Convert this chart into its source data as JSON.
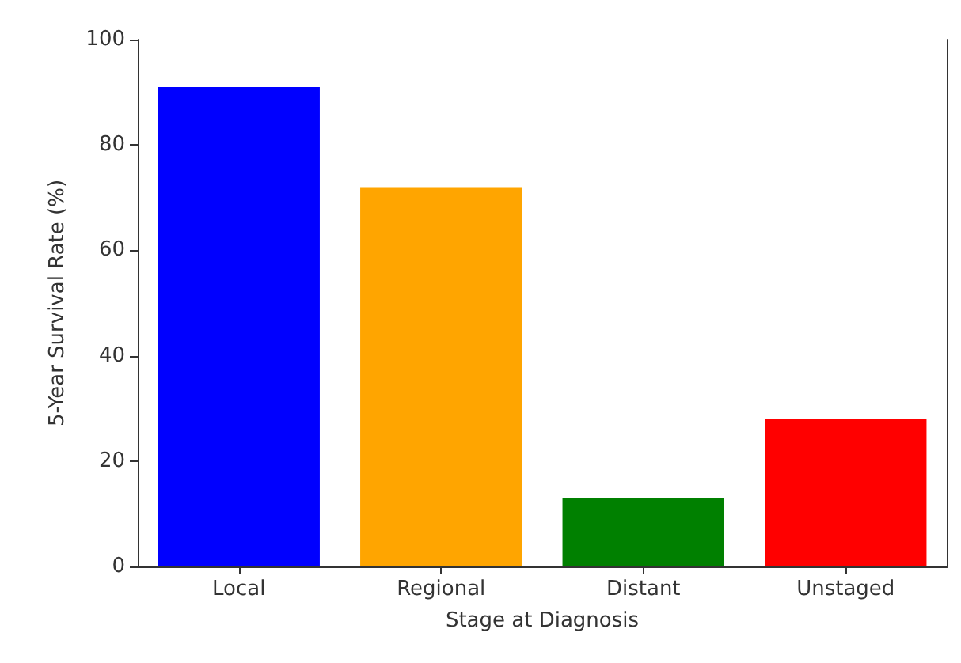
{
  "chart_data": {
    "type": "bar",
    "xlabel": "Stage at Diagnosis",
    "ylabel": "5-Year Survival Rate (%)",
    "categories": [
      "Local",
      "Regional",
      "Distant",
      "Unstaged"
    ],
    "values": [
      91,
      72,
      13,
      28
    ],
    "colors": [
      "#0000ff",
      "#ffa500",
      "#008000",
      "#ff0000"
    ],
    "ylim": [
      0,
      100
    ],
    "yticks": [
      0,
      20,
      40,
      60,
      80,
      100
    ],
    "grid": false
  }
}
